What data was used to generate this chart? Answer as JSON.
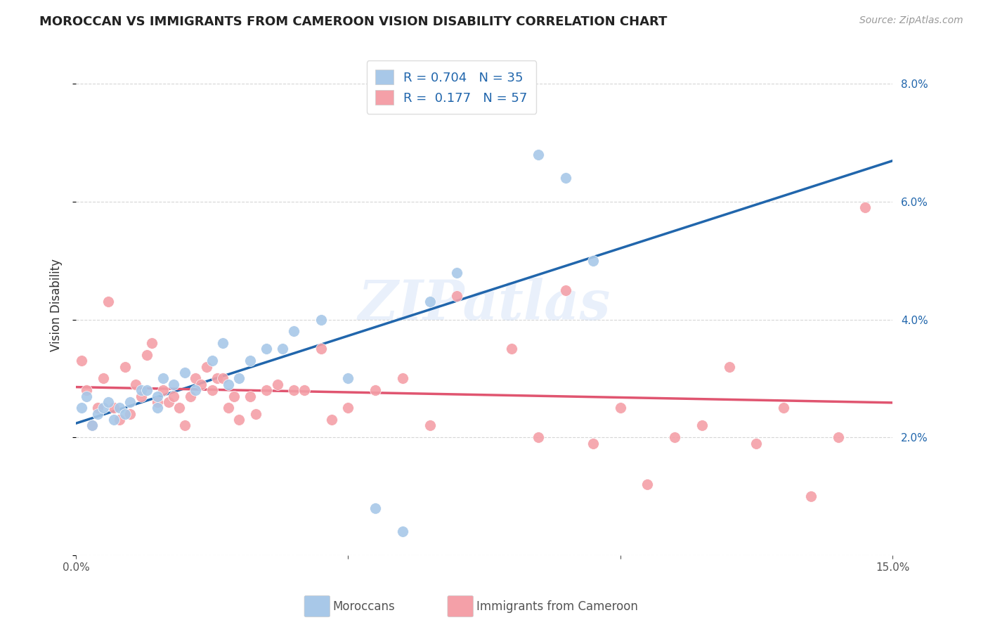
{
  "title": "MOROCCAN VS IMMIGRANTS FROM CAMEROON VISION DISABILITY CORRELATION CHART",
  "source": "Source: ZipAtlas.com",
  "xlabel_moroccan": "Moroccans",
  "xlabel_cameroon": "Immigrants from Cameroon",
  "ylabel": "Vision Disability",
  "xmin": 0.0,
  "xmax": 0.15,
  "ymin": 0.0,
  "ymax": 0.085,
  "r_moroccan": 0.704,
  "n_moroccan": 35,
  "r_cameroon": 0.177,
  "n_cameroon": 57,
  "blue_scatter_color": "#a8c8e8",
  "pink_scatter_color": "#f4a0a8",
  "blue_line_color": "#2166ac",
  "pink_line_color": "#e05570",
  "moroccan_x": [
    0.001,
    0.002,
    0.003,
    0.004,
    0.005,
    0.006,
    0.007,
    0.008,
    0.009,
    0.01,
    0.012,
    0.013,
    0.015,
    0.015,
    0.016,
    0.018,
    0.02,
    0.022,
    0.025,
    0.027,
    0.028,
    0.03,
    0.032,
    0.035,
    0.038,
    0.04,
    0.045,
    0.05,
    0.055,
    0.06,
    0.065,
    0.07,
    0.085,
    0.09,
    0.095
  ],
  "moroccan_y": [
    0.025,
    0.027,
    0.022,
    0.024,
    0.025,
    0.026,
    0.023,
    0.025,
    0.024,
    0.026,
    0.028,
    0.028,
    0.025,
    0.027,
    0.03,
    0.029,
    0.031,
    0.028,
    0.033,
    0.036,
    0.029,
    0.03,
    0.033,
    0.035,
    0.035,
    0.038,
    0.04,
    0.03,
    0.008,
    0.004,
    0.043,
    0.048,
    0.068,
    0.064,
    0.05
  ],
  "cameroon_x": [
    0.001,
    0.002,
    0.003,
    0.004,
    0.005,
    0.006,
    0.007,
    0.008,
    0.009,
    0.01,
    0.011,
    0.012,
    0.013,
    0.014,
    0.015,
    0.016,
    0.017,
    0.018,
    0.019,
    0.02,
    0.021,
    0.022,
    0.023,
    0.024,
    0.025,
    0.026,
    0.027,
    0.028,
    0.029,
    0.03,
    0.032,
    0.033,
    0.035,
    0.037,
    0.04,
    0.042,
    0.045,
    0.047,
    0.05,
    0.055,
    0.06,
    0.065,
    0.07,
    0.08,
    0.085,
    0.09,
    0.095,
    0.1,
    0.105,
    0.11,
    0.115,
    0.12,
    0.125,
    0.13,
    0.135,
    0.14,
    0.145
  ],
  "cameroon_y": [
    0.033,
    0.028,
    0.022,
    0.025,
    0.03,
    0.043,
    0.025,
    0.023,
    0.032,
    0.024,
    0.029,
    0.027,
    0.034,
    0.036,
    0.026,
    0.028,
    0.026,
    0.027,
    0.025,
    0.022,
    0.027,
    0.03,
    0.029,
    0.032,
    0.028,
    0.03,
    0.03,
    0.025,
    0.027,
    0.023,
    0.027,
    0.024,
    0.028,
    0.029,
    0.028,
    0.028,
    0.035,
    0.023,
    0.025,
    0.028,
    0.03,
    0.022,
    0.044,
    0.035,
    0.02,
    0.045,
    0.019,
    0.025,
    0.012,
    0.02,
    0.022,
    0.032,
    0.019,
    0.025,
    0.01,
    0.02,
    0.059
  ],
  "watermark": "ZIPatlas",
  "background_color": "#ffffff",
  "grid_color": "#cccccc"
}
